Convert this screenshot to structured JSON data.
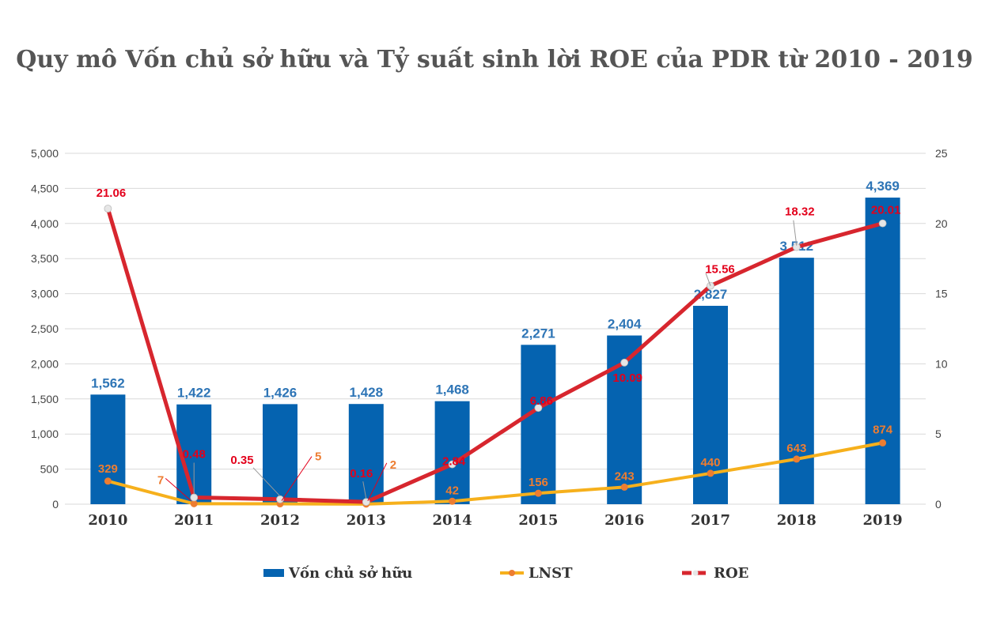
{
  "chart_data": {
    "type": "bar",
    "title": "Quy mô Vốn chủ sở hữu và Tỷ suất sinh lời ROE của PDR từ 2010 - 2019",
    "categories": [
      "2010",
      "2011",
      "2012",
      "2013",
      "2014",
      "2015",
      "2016",
      "2017",
      "2018",
      "2019"
    ],
    "y_left": {
      "min": 0,
      "max": 5000,
      "step": 500,
      "ticks": [
        "0",
        "500",
        "1,000",
        "1,500",
        "2,000",
        "2,500",
        "3,000",
        "3,500",
        "4,000",
        "4,500",
        "5,000"
      ]
    },
    "y_right": {
      "min": 0,
      "max": 25,
      "step": 5,
      "ticks": [
        "0",
        "5",
        "10",
        "15",
        "20",
        "25"
      ]
    },
    "series": [
      {
        "name": "Vốn chủ sở hữu",
        "type": "bar",
        "axis": "left",
        "color": "#0563B0",
        "values": [
          1562,
          1422,
          1426,
          1428,
          1468,
          2271,
          2404,
          2827,
          3512,
          4369
        ],
        "labels": [
          "1,562",
          "1,422",
          "1,426",
          "1,428",
          "1,468",
          "2,271",
          "2,404",
          "2,827",
          "3,512",
          "4,369"
        ]
      },
      {
        "name": "LNST",
        "type": "line",
        "axis": "left",
        "color": "#F6B01C",
        "marker_color": "#ED7D31",
        "values": [
          329,
          7,
          5,
          2,
          42,
          156,
          243,
          440,
          643,
          874
        ],
        "labels": [
          "329",
          "7",
          "5",
          "2",
          "42",
          "156",
          "243",
          "440",
          "643",
          "874"
        ]
      },
      {
        "name": "ROE",
        "type": "line",
        "axis": "right",
        "color": "#D7262E",
        "marker_color": "#E6E6E6",
        "values": [
          21.06,
          0.48,
          0.35,
          0.16,
          2.84,
          6.86,
          10.09,
          15.56,
          18.32,
          20.01
        ],
        "labels": [
          "21.06",
          "0.48",
          "0.35",
          "0.16",
          "2.84",
          "6.86",
          "10.09",
          "15.56",
          "18.32",
          "20.01"
        ]
      }
    ],
    "legend": {
      "position": "bottom",
      "items": [
        "Vốn chủ sở hữu",
        "LNST",
        "ROE"
      ]
    },
    "grid": true
  }
}
